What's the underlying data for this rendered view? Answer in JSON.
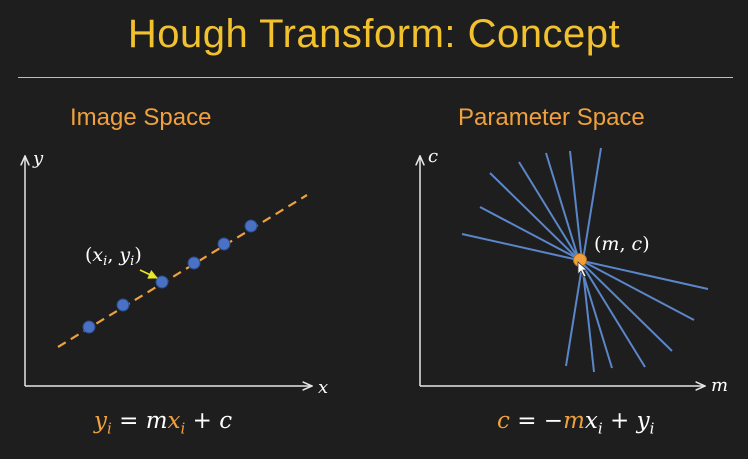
{
  "title": "Hough Transform: Concept",
  "panels": {
    "image_space": {
      "heading": "Image Space",
      "x_axis_label": "x",
      "y_axis_label": "y",
      "point_label": "(x_i, y_i)",
      "equation": "y_i = mx_i + c"
    },
    "parameter_space": {
      "heading": "Parameter Space",
      "x_axis_label": "m",
      "y_axis_label": "c",
      "point_label": "(m, c)",
      "equation": "c = −mx_i + y_i"
    }
  },
  "colors": {
    "background": "#1e1e1e",
    "title": "#f2c12e",
    "heading": "#f0a03c",
    "line": "#f0a03c",
    "point": "#4a72c4",
    "param_lines": "#5b86c9",
    "highlight_point": "#f0a03c",
    "arrow": "#e6e62a",
    "axes": "#e6e6e6"
  },
  "icons": {
    "pointer": "pointer-arrow-icon"
  }
}
